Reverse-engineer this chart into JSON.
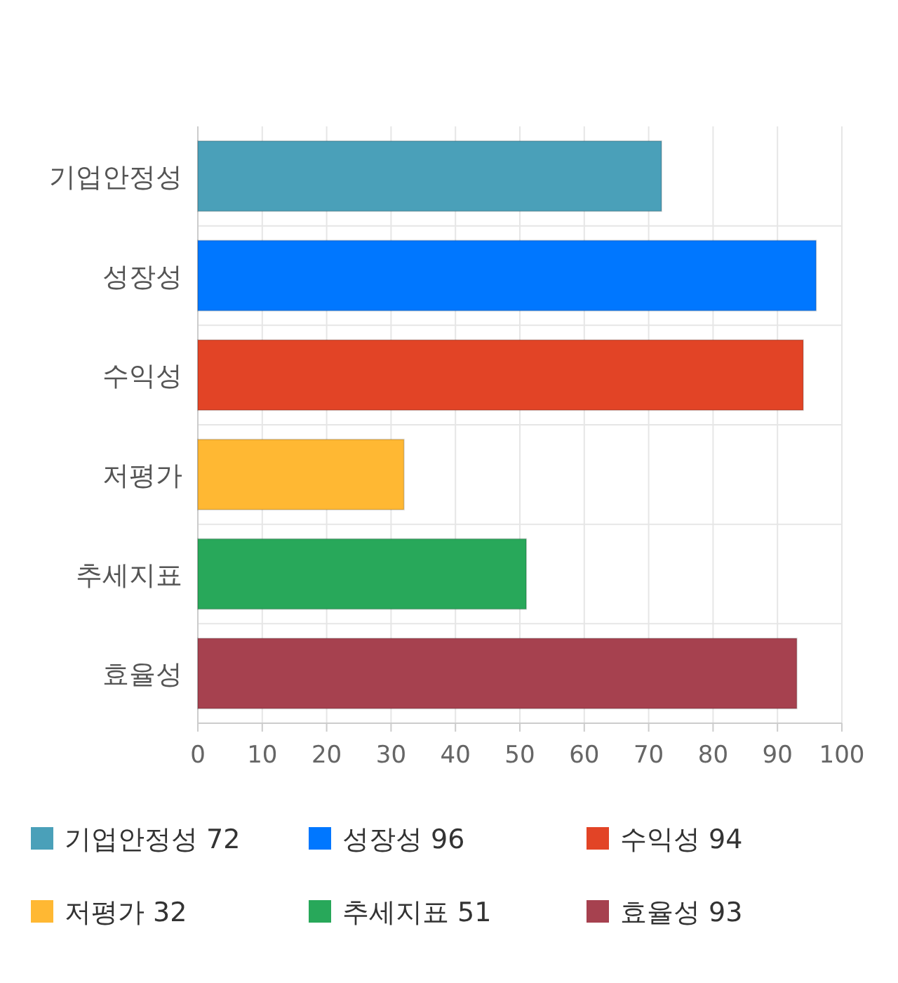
{
  "chart_data": {
    "type": "bar",
    "orientation": "horizontal",
    "categories": [
      "기업안정성",
      "성장성",
      "수익성",
      "저평가",
      "추세지표",
      "효율성"
    ],
    "series": [
      {
        "name": "기업안정성 72",
        "color": "#4aa0b9",
        "values": [
          72,
          null,
          null,
          null,
          null,
          null
        ]
      },
      {
        "name": "성장성 96",
        "color": "#0077ff",
        "values": [
          null,
          96,
          null,
          null,
          null,
          null
        ]
      },
      {
        "name": "수익성 94",
        "color": "#e24426",
        "values": [
          null,
          null,
          94,
          null,
          null,
          null
        ]
      },
      {
        "name": "저평가 32",
        "color": "#ffb833",
        "values": [
          null,
          null,
          null,
          32,
          null,
          null
        ]
      },
      {
        "name": "추세지표 51",
        "color": "#28a85a",
        "values": [
          null,
          null,
          null,
          null,
          51,
          null
        ]
      },
      {
        "name": "효율성 93",
        "color": "#a6414f",
        "values": [
          null,
          null,
          null,
          null,
          null,
          93
        ]
      }
    ],
    "xlim": [
      0,
      100
    ],
    "xticks": [
      0,
      10,
      20,
      30,
      40,
      50,
      60,
      70,
      80,
      90,
      100
    ],
    "grid": true,
    "legend": "bottom"
  }
}
